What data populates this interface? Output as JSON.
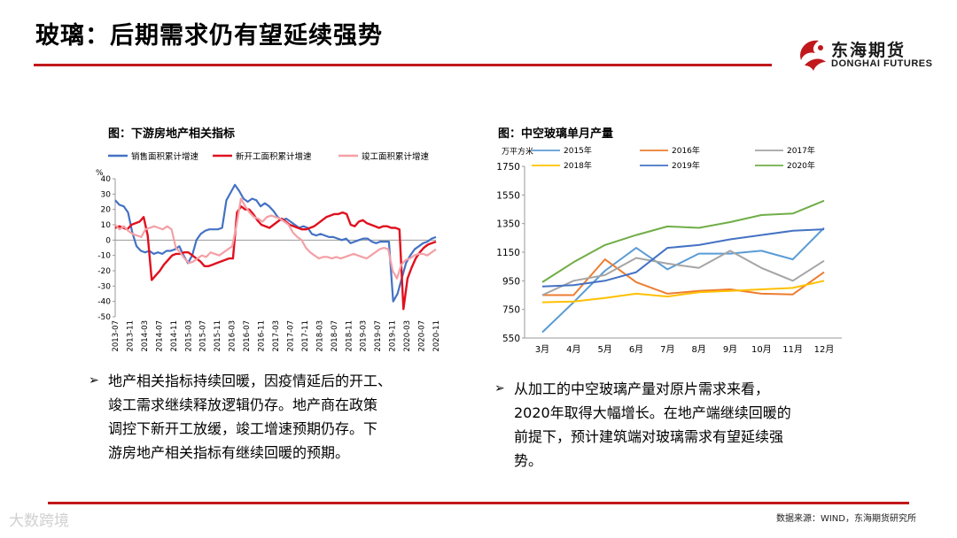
{
  "page": {
    "title": "玻璃：后期需求仍有望延续强势",
    "logo_cn": "东海期货",
    "logo_en": "DONGHAI FUTURES",
    "source": "数据来源：WIND，东海期货研究所",
    "watermark": "大数跨境",
    "accent_color": "#c0181b"
  },
  "left": {
    "fig_title": "图：下游房地产相关指标",
    "bullet": [
      "地产相关指标持续回暖，因疫情延后的开工、",
      "竣工需求继续释放逻辑仍存。地产商在政策",
      "调控下新开工放缓，竣工增速预期仍存。下",
      "游房地产相关指标有继续回暖的预期。"
    ]
  },
  "right": {
    "fig_title": "图：中空玻璃单月产量",
    "bullet": [
      "从加工的中空玻璃产量对原片需求来看，",
      "2020年取得大幅增长。在地产端继续回暖的",
      "前提下，预计建筑端对玻璃需求有望延续强",
      "势。"
    ]
  },
  "chart_data": [
    {
      "type": "line",
      "title": "图：下游房地产相关指标",
      "unit_label": "%",
      "ylim": [
        -50,
        40
      ],
      "yticks": [
        40,
        30,
        20,
        10,
        0,
        -10,
        -20,
        -30,
        -40,
        -50
      ],
      "xticks": [
        "2013-07",
        "2013-11",
        "2014-03",
        "2014-07",
        "2014-11",
        "2015-03",
        "2015-07",
        "2015-11",
        "2016-03",
        "2016-07",
        "2016-11",
        "2017-03",
        "2017-07",
        "2017-11",
        "2018-03",
        "2018-07",
        "2018-11",
        "2019-03",
        "2019-07",
        "2019-11",
        "2020-03",
        "2020-07",
        "2020-11"
      ],
      "series": [
        {
          "name": "销售面积累计增速",
          "color": "#4472c4",
          "values": [
            26,
            23,
            22,
            18,
            5,
            -4,
            -7,
            -8,
            -7,
            -9,
            -8,
            -9,
            -7,
            -7,
            -6,
            -4,
            -10,
            -15,
            -10,
            0,
            4,
            6,
            7,
            7,
            7,
            8,
            26,
            31,
            36,
            32,
            27,
            25,
            27,
            26,
            22,
            24,
            22,
            19,
            15,
            13,
            14,
            12,
            10,
            8,
            9,
            8,
            4,
            3,
            4,
            3,
            2,
            2,
            1,
            0,
            1,
            -2,
            -1,
            0,
            1,
            1,
            -1,
            -2,
            -1,
            -1,
            -1,
            -40,
            -35,
            -25,
            -15,
            -10,
            -6,
            -4,
            -2,
            -1,
            1,
            2
          ]
        },
        {
          "name": "新开工面积累计增速",
          "color": "#e0101f",
          "values": [
            8,
            9,
            8,
            7,
            10,
            11,
            12,
            15,
            3,
            -26,
            -23,
            -20,
            -16,
            -13,
            -10,
            -9,
            -9,
            -8,
            -8,
            -10,
            -12,
            -14,
            -17,
            -17,
            -16,
            -15,
            -14,
            -13,
            -12,
            -12,
            18,
            22,
            20,
            20,
            17,
            13,
            10,
            9,
            8,
            10,
            12,
            14,
            12,
            10,
            9,
            8,
            7,
            7,
            8,
            9,
            11,
            13,
            15,
            16,
            17,
            17,
            18,
            17,
            10,
            9,
            12,
            13,
            11,
            10,
            9,
            8,
            9,
            9,
            8,
            8,
            7,
            -45,
            -25,
            -18,
            -12,
            -8,
            -5,
            -3,
            -2,
            -1
          ]
        },
        {
          "name": "竣工面积累计增速",
          "color": "#f4a0a6",
          "values": [
            10,
            7,
            9,
            6,
            4,
            3,
            2,
            7,
            8,
            9,
            8,
            7,
            9,
            7,
            -5,
            -8,
            -12,
            -15,
            -14,
            -12,
            -10,
            -11,
            -8,
            -9,
            -10,
            -8,
            -6,
            -4,
            10,
            27,
            22,
            18,
            15,
            14,
            12,
            15,
            16,
            15,
            14,
            12,
            10,
            5,
            2,
            0,
            -5,
            -8,
            -10,
            -12,
            -11,
            -11,
            -12,
            -11,
            -12,
            -11,
            -10,
            -9,
            -10,
            -11,
            -12,
            -10,
            -8,
            -6,
            -5,
            -6,
            -20,
            -25,
            -16,
            -13,
            -12,
            -10,
            -9,
            -9,
            -10,
            -8,
            -6
          ]
        }
      ]
    },
    {
      "type": "line",
      "title": "图：中空玻璃单月产量",
      "unit_label": "万平方米",
      "ylim": [
        550,
        1750
      ],
      "yticks": [
        1750,
        1550,
        1350,
        1150,
        950,
        750,
        550
      ],
      "categories": [
        "3月",
        "4月",
        "5月",
        "6月",
        "7月",
        "8月",
        "9月",
        "10月",
        "11月",
        "12月"
      ],
      "series": [
        {
          "name": "2015年",
          "color": "#5b9bd5",
          "values": [
            590,
            800,
            1020,
            1180,
            1030,
            1140,
            1140,
            1160,
            1100,
            1320
          ]
        },
        {
          "name": "2016年",
          "color": "#ed7d31",
          "values": [
            850,
            850,
            1100,
            940,
            860,
            880,
            890,
            860,
            855,
            1010
          ]
        },
        {
          "name": "2017年",
          "color": "#a5a5a5",
          "values": [
            850,
            950,
            990,
            1110,
            1070,
            1040,
            1160,
            1040,
            950,
            1090
          ]
        },
        {
          "name": "2018年",
          "color": "#ffc000",
          "values": [
            800,
            805,
            830,
            860,
            840,
            870,
            880,
            890,
            900,
            950
          ]
        },
        {
          "name": "2019年",
          "color": "#4472c4",
          "values": [
            910,
            920,
            950,
            1010,
            1180,
            1200,
            1240,
            1270,
            1300,
            1310
          ]
        },
        {
          "name": "2020年",
          "color": "#70ad47",
          "values": [
            940,
            1080,
            1200,
            1270,
            1330,
            1320,
            1360,
            1410,
            1420,
            1510
          ]
        }
      ]
    }
  ]
}
